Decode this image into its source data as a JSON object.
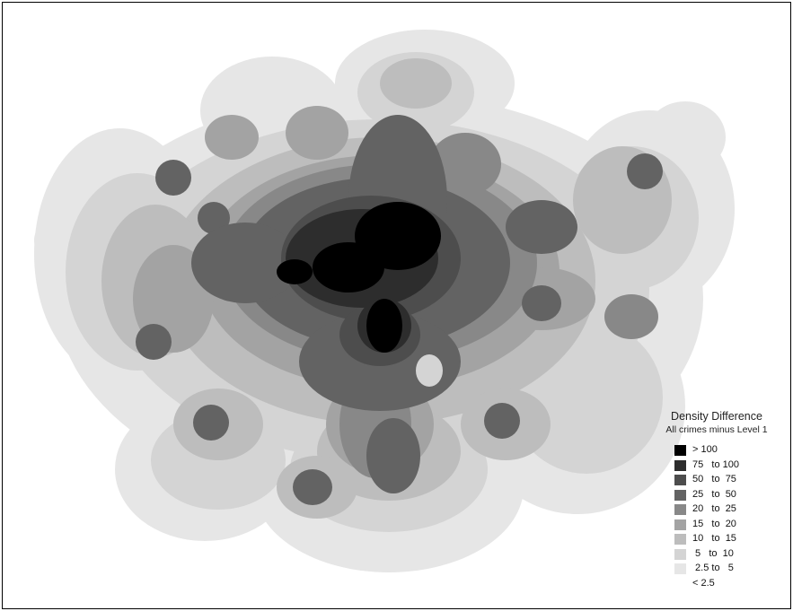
{
  "legend": {
    "title": "Density Difference",
    "subtitle": "All crimes minus Level 1",
    "classes": [
      {
        "label": "> 100",
        "color": "#000000"
      },
      {
        "label": "75   to 100",
        "color": "#2d2d2d"
      },
      {
        "label": "50   to  75",
        "color": "#4d4d4d"
      },
      {
        "label": "25   to  50",
        "color": "#636363"
      },
      {
        "label": "20   to  25",
        "color": "#888888"
      },
      {
        "label": "15   to  20",
        "color": "#a3a3a3"
      },
      {
        "label": "10   to  15",
        "color": "#bdbdbd"
      },
      {
        "label": " 5   to  10",
        "color": "#d4d4d4"
      },
      {
        "label": " 2.5 to   5",
        "color": "#e6e6e6"
      },
      {
        "label": "< 2.5",
        "color": "#ffffff"
      }
    ]
  }
}
